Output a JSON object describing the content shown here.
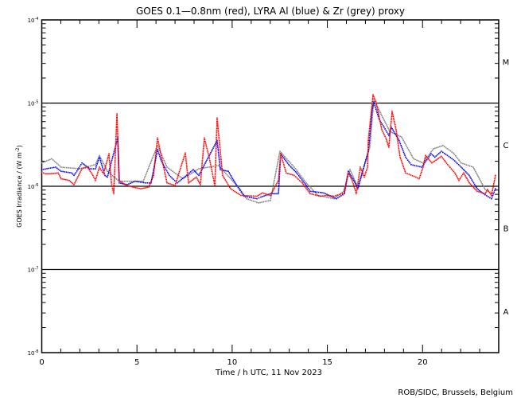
{
  "chart_data": {
    "type": "scatter",
    "title": "GOES 0.1—0.8nm (red), LYRA Al (blue) & Zr (grey) proxy",
    "xlabel": "Time / h UTC, 11 Nov 2023",
    "ylabel": "GOES Irradiance / (W m",
    "ylabel_sup": "-2",
    "ylabel_close": ")",
    "credit": "ROB/SIDC, Brussels, Belgium",
    "xlim": [
      0,
      24
    ],
    "x_ticks": [
      "0",
      "5",
      "10",
      "15",
      "20"
    ],
    "y_scale": "log",
    "ylim_log10": [
      -8,
      -4
    ],
    "y_ticks": [
      {
        "base": "10",
        "exp": "-4",
        "log10": -4
      },
      {
        "base": "10",
        "exp": "-5",
        "log10": -5
      },
      {
        "base": "10",
        "exp": "-6",
        "log10": -6
      },
      {
        "base": "10",
        "exp": "-7",
        "log10": -7
      },
      {
        "base": "10",
        "exp": "-8",
        "log10": -8
      }
    ],
    "flare_classes": [
      {
        "label": "M",
        "log10": -4.5
      },
      {
        "label": "C",
        "log10": -5.5
      },
      {
        "label": "B",
        "log10": -6.5
      },
      {
        "label": "A",
        "log10": -7.5
      }
    ],
    "reference_lines_log10": [
      -5,
      -6,
      -7
    ],
    "series": [
      {
        "name": "LYRA Zr proxy",
        "color": "#808080",
        "points_t_log10": [
          [
            0.0,
            -5.72
          ],
          [
            0.52,
            -5.67
          ],
          [
            1.02,
            -5.77
          ],
          [
            1.98,
            -5.79
          ],
          [
            2.82,
            -5.74
          ],
          [
            3.03,
            -5.63
          ],
          [
            3.45,
            -5.82
          ],
          [
            4.07,
            -5.94
          ],
          [
            5.33,
            -5.94
          ],
          [
            6.08,
            -5.51
          ],
          [
            6.58,
            -5.77
          ],
          [
            7.41,
            -5.91
          ],
          [
            8.25,
            -5.79
          ],
          [
            9.29,
            -5.75
          ],
          [
            9.92,
            -5.91
          ],
          [
            10.34,
            -6.01
          ],
          [
            10.76,
            -6.15
          ],
          [
            11.38,
            -6.2
          ],
          [
            12.01,
            -6.17
          ],
          [
            12.51,
            -5.58
          ],
          [
            13.26,
            -5.77
          ],
          [
            13.89,
            -5.96
          ],
          [
            14.51,
            -6.11
          ],
          [
            15.35,
            -6.15
          ],
          [
            15.85,
            -6.06
          ],
          [
            16.19,
            -5.8
          ],
          [
            16.6,
            -6.01
          ],
          [
            17.23,
            -5.53
          ],
          [
            17.44,
            -4.96
          ],
          [
            17.86,
            -5.15
          ],
          [
            18.28,
            -5.34
          ],
          [
            18.9,
            -5.41
          ],
          [
            19.53,
            -5.67
          ],
          [
            20.03,
            -5.72
          ],
          [
            20.57,
            -5.55
          ],
          [
            21.07,
            -5.51
          ],
          [
            21.62,
            -5.6
          ],
          [
            22.03,
            -5.72
          ],
          [
            22.66,
            -5.77
          ],
          [
            23.29,
            -6.04
          ],
          [
            23.71,
            -6.09
          ]
        ]
      },
      {
        "name": "LYRA Al proxy",
        "color": "#0000ff",
        "points_t_log10": [
          [
            0.0,
            -5.8
          ],
          [
            0.73,
            -5.77
          ],
          [
            1.02,
            -5.82
          ],
          [
            1.57,
            -5.84
          ],
          [
            1.69,
            -5.87
          ],
          [
            1.9,
            -5.8
          ],
          [
            2.11,
            -5.72
          ],
          [
            2.53,
            -5.79
          ],
          [
            2.82,
            -5.79
          ],
          [
            3.03,
            -5.65
          ],
          [
            3.32,
            -5.87
          ],
          [
            3.45,
            -5.89
          ],
          [
            3.99,
            -5.42
          ],
          [
            4.07,
            -5.96
          ],
          [
            4.49,
            -5.98
          ],
          [
            4.91,
            -5.94
          ],
          [
            5.45,
            -5.96
          ],
          [
            5.74,
            -5.96
          ],
          [
            6.08,
            -5.56
          ],
          [
            6.29,
            -5.7
          ],
          [
            6.7,
            -5.87
          ],
          [
            7.12,
            -5.96
          ],
          [
            7.96,
            -5.8
          ],
          [
            8.25,
            -5.87
          ],
          [
            9.21,
            -5.45
          ],
          [
            9.38,
            -5.8
          ],
          [
            9.8,
            -5.82
          ],
          [
            10.21,
            -5.98
          ],
          [
            10.63,
            -6.12
          ],
          [
            11.3,
            -6.15
          ],
          [
            11.51,
            -6.13
          ],
          [
            12.01,
            -6.09
          ],
          [
            12.43,
            -6.09
          ],
          [
            12.55,
            -5.61
          ],
          [
            12.97,
            -5.74
          ],
          [
            13.39,
            -5.84
          ],
          [
            13.89,
            -5.99
          ],
          [
            14.1,
            -6.06
          ],
          [
            14.81,
            -6.08
          ],
          [
            15.48,
            -6.15
          ],
          [
            15.89,
            -6.09
          ],
          [
            16.1,
            -5.82
          ],
          [
            16.39,
            -5.93
          ],
          [
            16.6,
            -6.03
          ],
          [
            17.15,
            -5.58
          ],
          [
            17.36,
            -5.07
          ],
          [
            17.44,
            -4.99
          ],
          [
            17.73,
            -5.2
          ],
          [
            17.98,
            -5.29
          ],
          [
            18.23,
            -5.39
          ],
          [
            18.36,
            -5.29
          ],
          [
            18.77,
            -5.45
          ],
          [
            19.11,
            -5.65
          ],
          [
            19.4,
            -5.74
          ],
          [
            19.95,
            -5.77
          ],
          [
            20.45,
            -5.61
          ],
          [
            20.65,
            -5.65
          ],
          [
            20.99,
            -5.58
          ],
          [
            21.62,
            -5.68
          ],
          [
            22.03,
            -5.77
          ],
          [
            22.45,
            -5.87
          ],
          [
            22.87,
            -6.03
          ],
          [
            23.2,
            -6.09
          ],
          [
            23.62,
            -6.15
          ],
          [
            23.83,
            -6.03
          ]
        ]
      },
      {
        "name": "GOES 0.1-0.8nm",
        "color": "#ff0000",
        "points_t_log10": [
          [
            0.0,
            -5.83
          ],
          [
            0.19,
            -5.85
          ],
          [
            0.44,
            -5.85
          ],
          [
            0.86,
            -5.84
          ],
          [
            1.02,
            -5.91
          ],
          [
            1.44,
            -5.93
          ],
          [
            1.69,
            -5.98
          ],
          [
            2.11,
            -5.79
          ],
          [
            2.4,
            -5.77
          ],
          [
            2.69,
            -5.87
          ],
          [
            2.82,
            -5.93
          ],
          [
            3.03,
            -5.77
          ],
          [
            3.24,
            -5.85
          ],
          [
            3.53,
            -5.61
          ],
          [
            3.66,
            -5.96
          ],
          [
            3.78,
            -6.09
          ],
          [
            3.95,
            -5.13
          ],
          [
            4.07,
            -5.93
          ],
          [
            4.37,
            -5.98
          ],
          [
            4.78,
            -6.01
          ],
          [
            5.2,
            -6.03
          ],
          [
            5.62,
            -6.01
          ],
          [
            5.87,
            -5.87
          ],
          [
            6.08,
            -5.42
          ],
          [
            6.29,
            -5.65
          ],
          [
            6.58,
            -5.96
          ],
          [
            7.0,
            -5.99
          ],
          [
            7.54,
            -5.6
          ],
          [
            7.71,
            -5.96
          ],
          [
            8.12,
            -5.89
          ],
          [
            8.33,
            -5.98
          ],
          [
            8.54,
            -5.42
          ],
          [
            8.79,
            -5.65
          ],
          [
            9.09,
            -5.99
          ],
          [
            9.21,
            -5.18
          ],
          [
            9.5,
            -5.87
          ],
          [
            9.92,
            -6.03
          ],
          [
            10.46,
            -6.11
          ],
          [
            11.3,
            -6.12
          ],
          [
            11.59,
            -6.08
          ],
          [
            12.01,
            -6.11
          ],
          [
            12.43,
            -5.93
          ],
          [
            12.55,
            -5.61
          ],
          [
            12.84,
            -5.84
          ],
          [
            13.26,
            -5.87
          ],
          [
            13.68,
            -5.96
          ],
          [
            14.1,
            -6.09
          ],
          [
            14.64,
            -6.12
          ],
          [
            14.93,
            -6.11
          ],
          [
            15.35,
            -6.12
          ],
          [
            15.89,
            -6.08
          ],
          [
            16.1,
            -5.84
          ],
          [
            16.31,
            -5.93
          ],
          [
            16.52,
            -6.09
          ],
          [
            16.73,
            -5.77
          ],
          [
            16.94,
            -5.89
          ],
          [
            17.11,
            -5.77
          ],
          [
            17.15,
            -5.45
          ],
          [
            17.31,
            -5.1
          ],
          [
            17.4,
            -4.9
          ],
          [
            17.57,
            -5.0
          ],
          [
            17.86,
            -5.32
          ],
          [
            18.07,
            -5.42
          ],
          [
            18.23,
            -5.53
          ],
          [
            18.4,
            -5.1
          ],
          [
            18.61,
            -5.32
          ],
          [
            18.82,
            -5.65
          ],
          [
            19.11,
            -5.84
          ],
          [
            19.65,
            -5.89
          ],
          [
            19.82,
            -5.91
          ],
          [
            20.03,
            -5.77
          ],
          [
            20.16,
            -5.63
          ],
          [
            20.49,
            -5.72
          ],
          [
            20.99,
            -5.64
          ],
          [
            21.32,
            -5.74
          ],
          [
            21.7,
            -5.84
          ],
          [
            21.91,
            -5.93
          ],
          [
            22.16,
            -5.84
          ],
          [
            22.46,
            -5.96
          ],
          [
            22.87,
            -6.06
          ],
          [
            23.29,
            -6.09
          ],
          [
            23.41,
            -6.04
          ],
          [
            23.62,
            -6.11
          ],
          [
            23.83,
            -5.87
          ]
        ]
      }
    ]
  }
}
